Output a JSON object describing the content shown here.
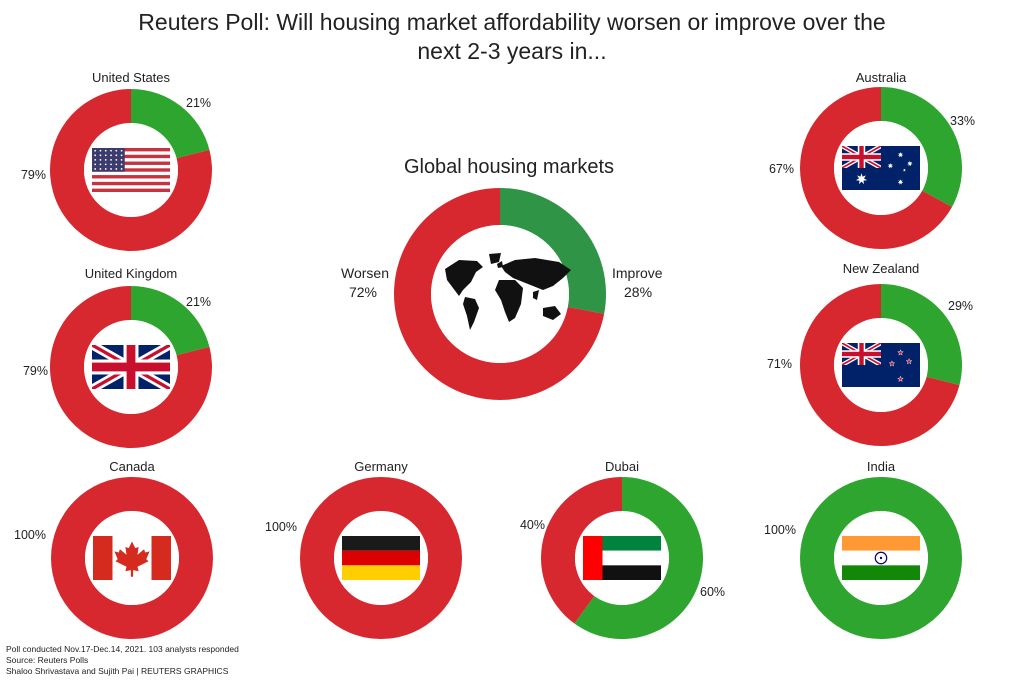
{
  "header": {
    "title_line1": "Reuters Poll: Will housing market affordability worsen or improve over the",
    "title_line2": "next 2-3 years in..."
  },
  "colors": {
    "worsen": "#d7282f",
    "improve": "#2ea52e",
    "improve_global": "#2f9445"
  },
  "chart_data": {
    "type": "pie",
    "variant": "donut",
    "series_names": [
      "Worsen",
      "Improve"
    ],
    "charts": [
      {
        "id": "global",
        "title": "Global housing markets",
        "flag": "world-map",
        "worsen": 72,
        "improve": 28,
        "worsen_label": "72%",
        "improve_label": "28%",
        "worsen_name": "Worsen",
        "improve_name": "Improve"
      },
      {
        "id": "us",
        "title": "United States",
        "flag": "us",
        "worsen": 79,
        "improve": 21,
        "worsen_label": "79%",
        "improve_label": "21%"
      },
      {
        "id": "uk",
        "title": "United Kingdom",
        "flag": "uk",
        "worsen": 79,
        "improve": 21,
        "worsen_label": "79%",
        "improve_label": "21%"
      },
      {
        "id": "au",
        "title": "Australia",
        "flag": "au",
        "worsen": 67,
        "improve": 33,
        "worsen_label": "67%",
        "improve_label": "33%"
      },
      {
        "id": "nz",
        "title": "New Zealand",
        "flag": "nz",
        "worsen": 71,
        "improve": 29,
        "worsen_label": "71%",
        "improve_label": "29%"
      },
      {
        "id": "ca",
        "title": "Canada",
        "flag": "ca",
        "worsen": 100,
        "improve": 0,
        "worsen_label": "100%",
        "improve_label": ""
      },
      {
        "id": "de",
        "title": "Germany",
        "flag": "de",
        "worsen": 100,
        "improve": 0,
        "worsen_label": "100%",
        "improve_label": ""
      },
      {
        "id": "ae",
        "title": "Dubai",
        "flag": "ae",
        "worsen": 40,
        "improve": 60,
        "worsen_label": "40%",
        "improve_label": "60%"
      },
      {
        "id": "in",
        "title": "India",
        "flag": "in",
        "worsen": 0,
        "improve": 100,
        "worsen_label": "",
        "improve_label": "100%"
      }
    ]
  },
  "footer": {
    "line1": "Poll conducted Nov.17-Dec.14, 2021. 103 analysts responded",
    "line2": "Source: Reuters Polls",
    "line3": "Shaloo Shrivastava and Sujith Pai | REUTERS GRAPHICS"
  }
}
